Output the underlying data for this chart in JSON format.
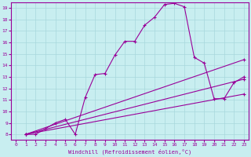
{
  "xlabel": "Windchill (Refroidissement éolien,°C)",
  "bg_color": "#c8eef0",
  "line_color": "#990099",
  "grid_color": "#a8d8dc",
  "xlim": [
    -0.5,
    23.5
  ],
  "ylim": [
    7.5,
    19.5
  ],
  "xticks": [
    0,
    1,
    2,
    3,
    4,
    5,
    6,
    7,
    8,
    9,
    10,
    11,
    12,
    13,
    14,
    15,
    16,
    17,
    18,
    19,
    20,
    21,
    22,
    23
  ],
  "yticks": [
    8,
    9,
    10,
    11,
    12,
    13,
    14,
    15,
    16,
    17,
    18,
    19
  ],
  "series": [
    {
      "x": [
        1,
        2,
        3,
        4,
        5,
        6,
        7,
        8,
        9,
        10,
        11,
        12,
        13,
        14,
        15,
        16,
        17,
        18,
        19,
        20,
        21,
        22,
        23
      ],
      "y": [
        8.0,
        8.0,
        8.5,
        9.0,
        9.3,
        8.0,
        11.2,
        13.2,
        13.3,
        14.9,
        16.1,
        16.1,
        17.5,
        18.2,
        19.3,
        19.4,
        19.1,
        14.7,
        14.2,
        11.1,
        11.1,
        12.5,
        13.0
      ]
    },
    {
      "x": [
        1,
        2,
        3,
        4,
        5,
        6,
        22,
        23
      ],
      "y": [
        8.0,
        8.0,
        8.5,
        9.0,
        9.3,
        8.0,
        12.5,
        13.0
      ]
    },
    {
      "x": [
        1,
        2,
        3,
        4,
        5,
        6,
        22,
        23
      ],
      "y": [
        8.0,
        8.0,
        8.5,
        9.0,
        9.3,
        8.0,
        12.0,
        13.0
      ]
    },
    {
      "x": [
        1,
        6,
        23
      ],
      "y": [
        8.0,
        8.0,
        13.0
      ]
    },
    {
      "x": [
        1,
        6,
        23
      ],
      "y": [
        8.0,
        8.0,
        12.5
      ]
    }
  ]
}
